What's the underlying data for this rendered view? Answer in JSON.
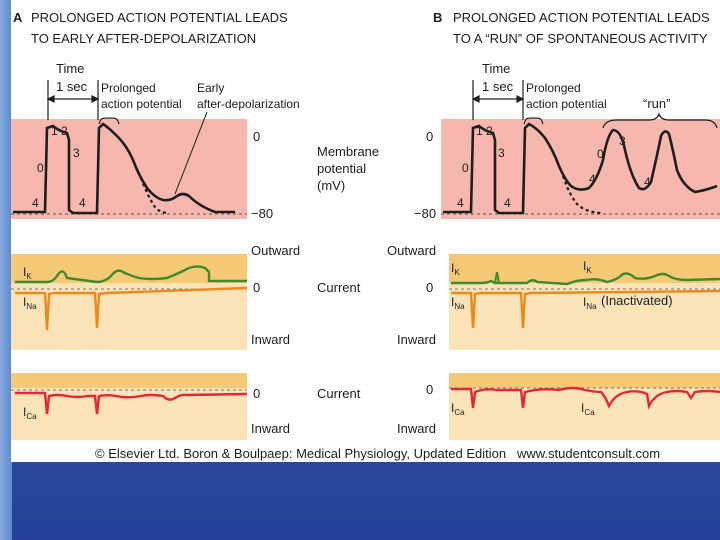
{
  "panel_a": {
    "letter": "A",
    "title_line1": "PROLONGED ACTION POTENTIAL LEADS",
    "title_line2": "TO EARLY AFTER-DEPOLARIZATION",
    "time_label": "Time",
    "time_value": "1 sec",
    "prolonged_line1": "Prolonged",
    "prolonged_line2": "action potential",
    "early_line1": "Early",
    "early_line2": "after-depolarization",
    "phase_1": "1",
    "phase_2": "2",
    "phase_3": "3",
    "phase_0": "0",
    "phase_4a": "4",
    "phase_4b": "4",
    "ik": "I",
    "ik_sub": "K",
    "ina": "I",
    "ina_sub": "Na",
    "ica": "I",
    "ica_sub": "Ca"
  },
  "panel_b": {
    "letter": "B",
    "title_line1": "PROLONGED ACTION POTENTIAL LEADS",
    "title_line2": "TO A “RUN” OF SPONTANEOUS ACTIVITY",
    "time_label": "Time",
    "time_value": "1 sec",
    "prolonged_line1": "Prolonged",
    "prolonged_line2": "action potential",
    "run_label": "“run”",
    "phase_1": "1",
    "phase_2": "2",
    "phase_3": "3",
    "phase_0": "0",
    "phase_4a": "4",
    "phase_4b": "4",
    "phase_0b": "0",
    "phase_3b": "3",
    "phase_4c": "4",
    "phase_4d": "4",
    "ik": "I",
    "ik_sub": "K",
    "ik2": "I",
    "ik2_sub": "K",
    "ina": "I",
    "ina_sub": "Na",
    "ina2": "I",
    "ina2_sub": "Na",
    "inactivated": "(Inactivated)",
    "ica": "I",
    "ica_sub": "Ca",
    "ica2": "I",
    "ica2_sub": "Ca"
  },
  "axis": {
    "zero_a": "0",
    "minus80_a": "−80",
    "zero_b": "0",
    "minus80_b": "−80",
    "membrane_line1": "Membrane",
    "membrane_line2": "potential",
    "membrane_line3": "(mV)",
    "outward_a": "Outward",
    "outward_b": "Outward",
    "current_zero_a": "0",
    "current_zero_b": "0",
    "current_label": "Current",
    "inward_a": "Inward",
    "inward_b": "Inward",
    "ca_zero_a": "0",
    "ca_zero_b": "0",
    "ca_current_label": "Current",
    "ca_inward_a": "Inward",
    "ca_inward_b": "Inward"
  },
  "footer": {
    "copyright": "© Elsevier Ltd. Boron & Boulpaep: Medical Physiology, Updated Edition   www.studentconsult.com"
  },
  "colors": {
    "membrane_bg": "#f6b8ae",
    "current_bg": "#fbe3b8",
    "current_band": "#f6c977",
    "ik_line": "#3f8a2c",
    "ina_line": "#eb8a1c",
    "ica_line": "#e0283a",
    "trace": "#1e1e1e"
  }
}
